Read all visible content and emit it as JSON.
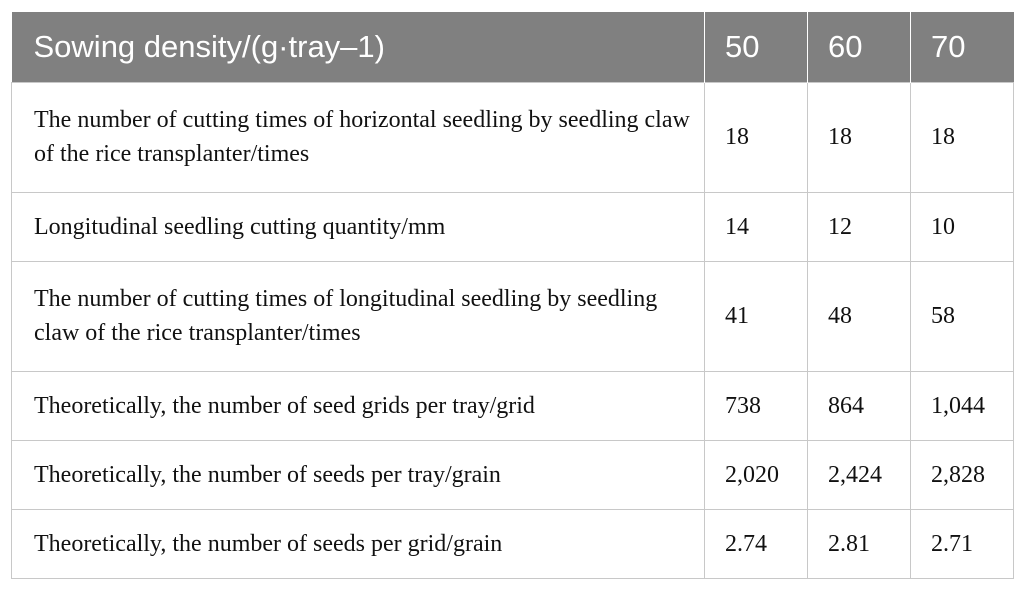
{
  "table": {
    "header": {
      "label": "Sowing density/(g·tray–1)",
      "columns": [
        "50",
        "60",
        "70"
      ]
    },
    "rows": [
      {
        "label": "The number of cutting times of horizontal seedling by seedling claw of the rice transplanter/times",
        "values": [
          "18",
          "18",
          "18"
        ]
      },
      {
        "label": "Longitudinal seedling cutting quantity/mm",
        "values": [
          "14",
          "12",
          "10"
        ]
      },
      {
        "label": "The number of cutting times of longitudinal seedling by seedling claw of the rice transplanter/times",
        "values": [
          "41",
          "48",
          "58"
        ]
      },
      {
        "label": "Theoretically, the number of seed grids per tray/grid",
        "values": [
          "738",
          "864",
          "1,044"
        ]
      },
      {
        "label": "Theoretically, the number of seeds per tray/grain",
        "values": [
          "2,020",
          "2,424",
          "2,828"
        ]
      },
      {
        "label": "Theoretically, the number of seeds per grid/grain",
        "values": [
          "2.74",
          "2.81",
          "2.71"
        ]
      }
    ]
  },
  "colors": {
    "header_background": "#808080",
    "header_text": "#ffffff",
    "grid_line": "#c8c8c8"
  }
}
